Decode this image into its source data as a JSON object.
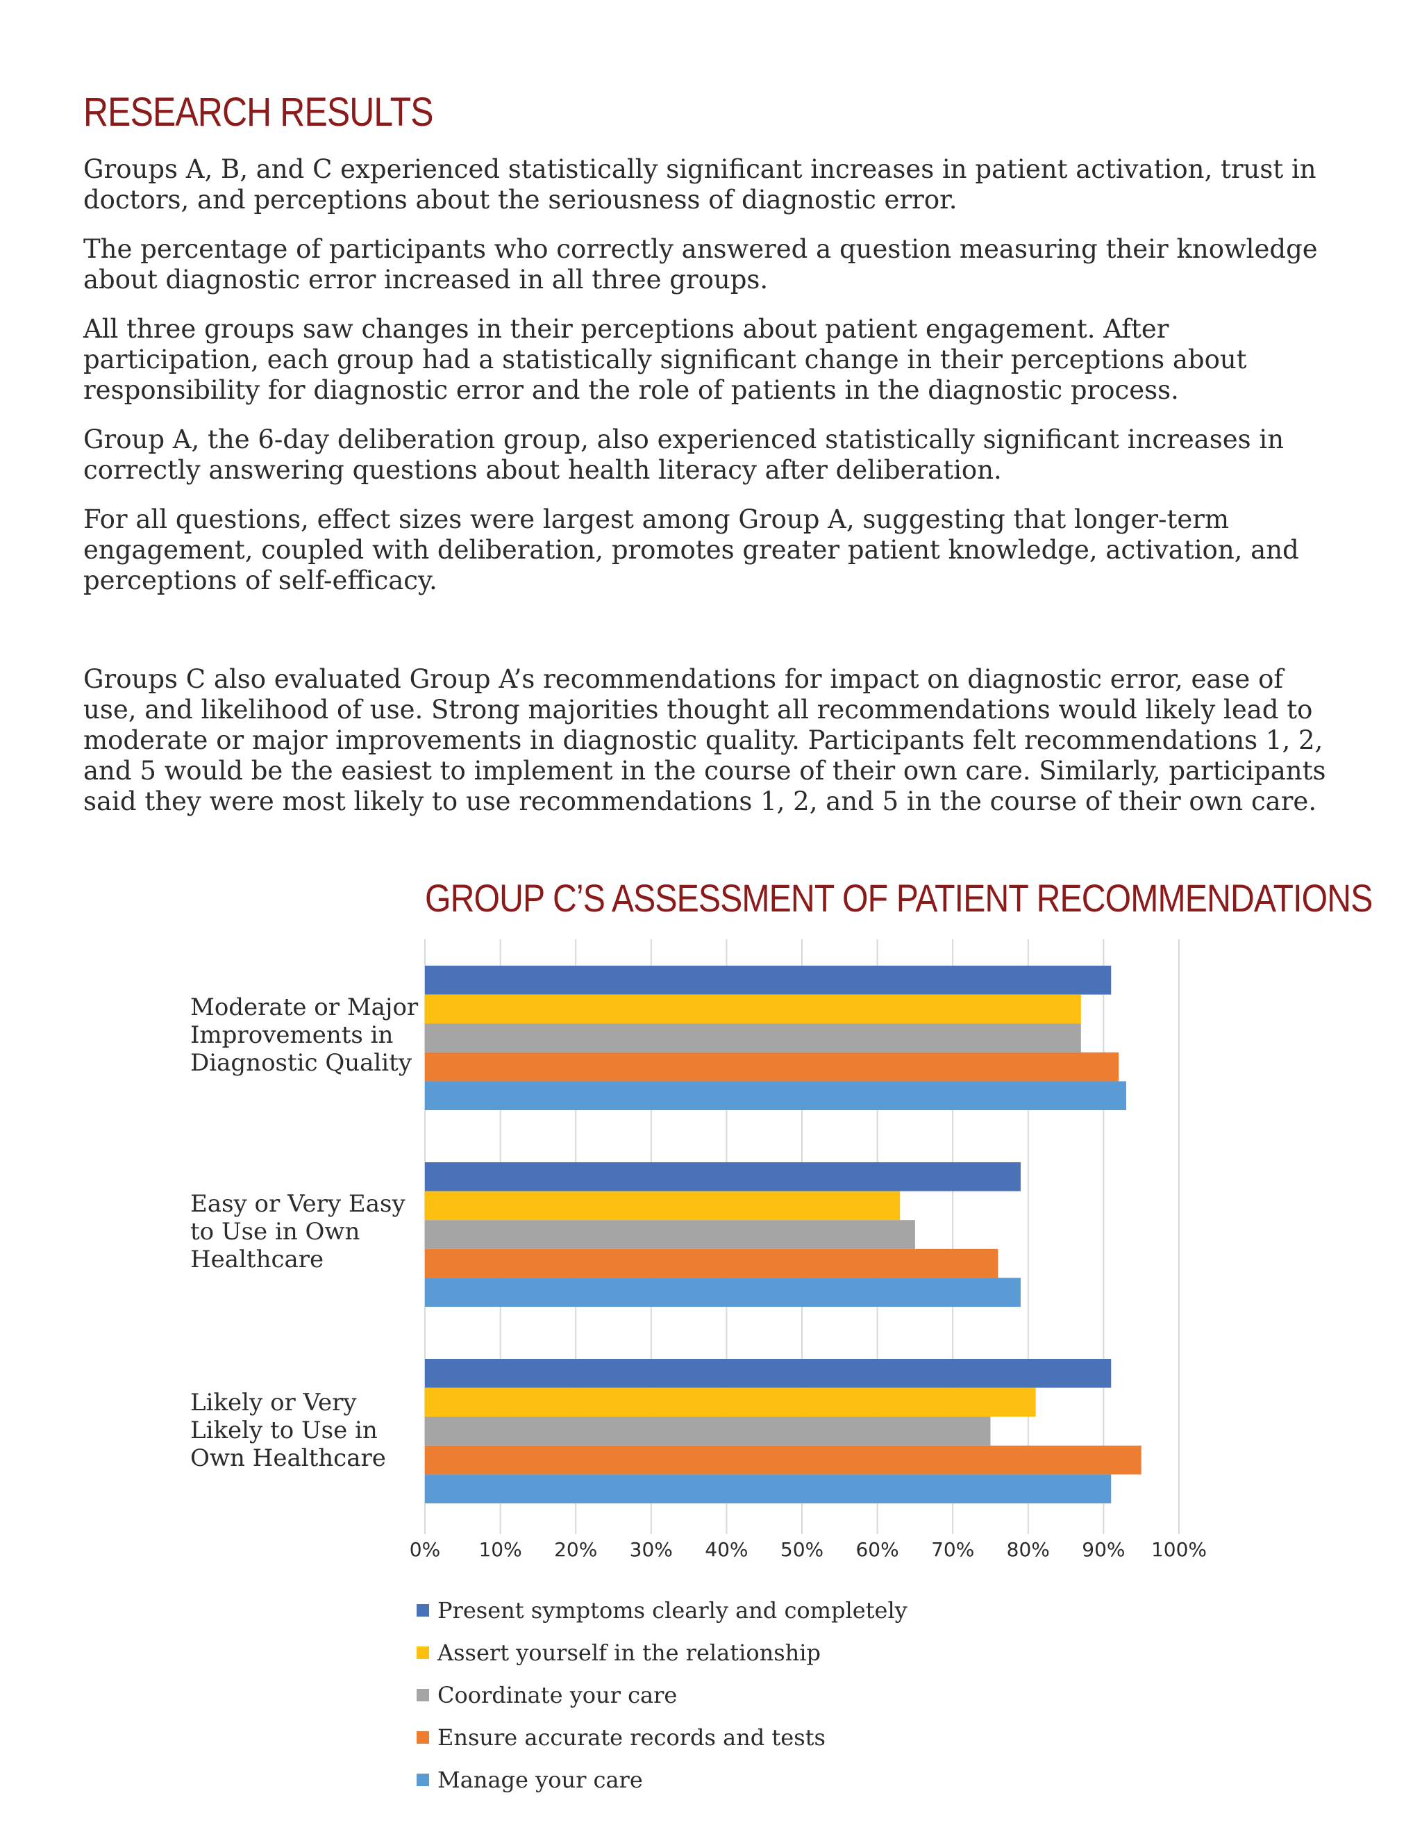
{
  "heading": "RESEARCH RESULTS",
  "paragraphs": [
    "Groups A, B, and C experienced statistically significant increases in patient activation, trust in doctors, and perceptions about the seriousness of diagnostic error.",
    "The percentage of participants who correctly answered a question measuring their knowledge about diagnostic error increased in all three groups.",
    "All three groups saw changes in their perceptions about patient engagement. After participation, each group had a statistically significant change in their perceptions about responsibility for diagnostic error and the role of patients in the diagnostic process.",
    "Group A, the 6-day deliberation group, also experienced statistically significant increases in correctly answering questions about health literacy after deliberation.",
    "For all questions, effect sizes were largest among Group A, suggesting that longer-term engagement, coupled with deliberation, promotes greater patient knowledge, activation, and perceptions of self-efficacy.",
    "Groups C also evaluated Group A’s recommendations for impact on diagnostic error, ease of use, and likelihood of use. Strong majorities thought all recommendations would likely lead to moderate or major improvements in diagnostic quality. Participants felt recommendations 1, 2, and 5 would be the easiest to implement in the course of their own care. Similarly, participants said they were most likely to use recommendations 1, 2, and 5 in the course of their own care."
  ],
  "chart_data": {
    "type": "bar",
    "orientation": "horizontal",
    "title": "GROUP C’S ASSESSMENT OF PATIENT RECOMMENDATIONS",
    "categories": [
      "Moderate or Major Improvements in Diagnostic Quality",
      "Easy or Very Easy to Use in Own Healthcare",
      "Likely or Very Likely to Use in Own Healthcare"
    ],
    "category_lines": [
      [
        "Moderate or Major",
        "Improvements in",
        "Diagnostic Quality"
      ],
      [
        "Easy or Very Easy",
        "to Use in Own",
        "Healthcare"
      ],
      [
        "Likely or Very",
        "Likely to Use in",
        "Own Healthcare"
      ]
    ],
    "series": [
      {
        "name": "Present symptoms clearly and completely",
        "color": "#4a72b8",
        "values": [
          91,
          79,
          91
        ]
      },
      {
        "name": "Assert yourself in the relationship",
        "color": "#fdc010",
        "values": [
          87,
          63,
          81
        ]
      },
      {
        "name": "Coordinate your care",
        "color": "#a5a5a5",
        "values": [
          87,
          65,
          75
        ]
      },
      {
        "name": "Ensure accurate records and tests",
        "color": "#ed7d31",
        "values": [
          92,
          76,
          95
        ]
      },
      {
        "name": "Manage your care",
        "color": "#5b9bd5",
        "values": [
          93,
          79,
          91
        ]
      }
    ],
    "xlim": [
      0,
      100
    ],
    "xticks": [
      0,
      10,
      20,
      30,
      40,
      50,
      60,
      70,
      80,
      90,
      100
    ],
    "tick_format": "percent",
    "grid": true,
    "legend_position": "bottom"
  }
}
